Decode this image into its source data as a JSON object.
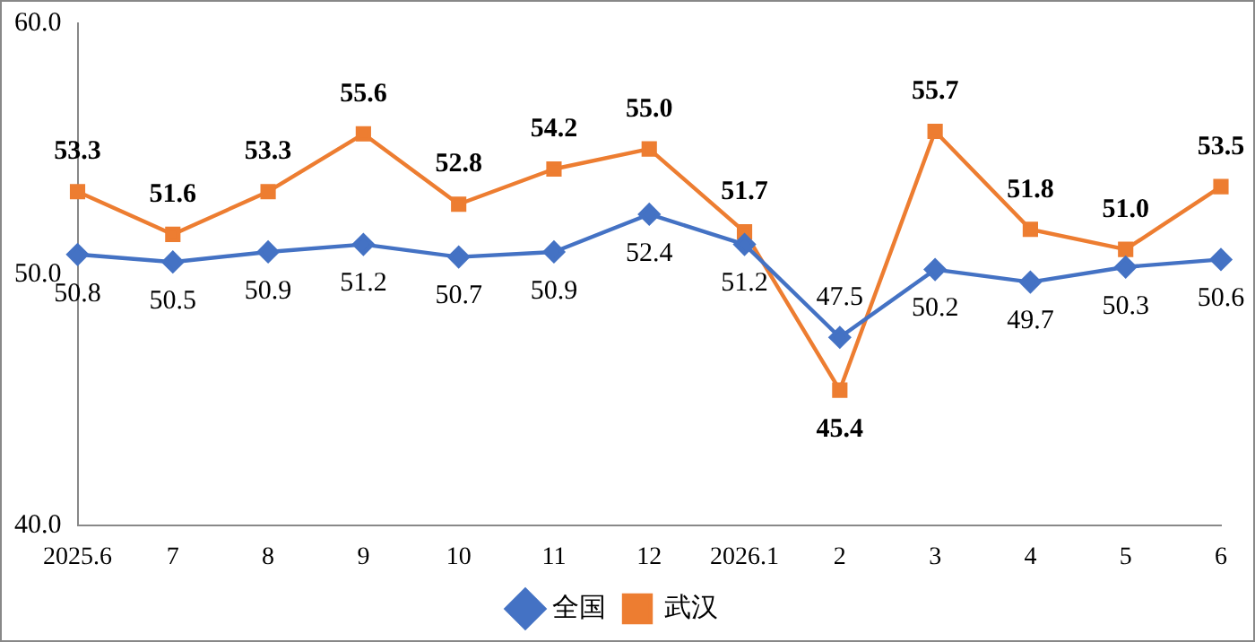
{
  "chart_data": {
    "type": "line",
    "categories": [
      "2025.6",
      "7",
      "8",
      "9",
      "10",
      "11",
      "12",
      "2026.1",
      "2",
      "3",
      "4",
      "5",
      "6"
    ],
    "series": [
      {
        "name": "全国",
        "color": "#4472c4",
        "marker": "diamond",
        "values": [
          50.8,
          50.5,
          50.9,
          51.2,
          50.7,
          50.9,
          52.4,
          51.2,
          47.5,
          50.2,
          49.7,
          50.3,
          50.6
        ],
        "value_labels": [
          "50.8",
          "50.5",
          "50.9",
          "51.2",
          "50.7",
          "50.9",
          "52.4",
          "51.2",
          "47.5",
          "50.2",
          "49.7",
          "50.3",
          "50.6"
        ]
      },
      {
        "name": "武汉",
        "color": "#ed7d31",
        "marker": "square",
        "values": [
          53.3,
          51.6,
          53.3,
          55.6,
          52.8,
          54.2,
          55.0,
          51.7,
          45.4,
          55.7,
          51.8,
          51.0,
          53.5
        ],
        "value_labels": [
          "53.3",
          "51.6",
          "53.3",
          "55.6",
          "52.8",
          "54.2",
          "55.0",
          "51.7",
          "45.4",
          "55.7",
          "51.8",
          "51.0",
          "53.5"
        ]
      }
    ],
    "ylim": [
      40,
      60
    ],
    "yticks": [
      {
        "value": 40,
        "label": "40.0"
      },
      {
        "value": 50,
        "label": "50.0"
      },
      {
        "value": 60,
        "label": "60.0"
      }
    ],
    "grid": false,
    "legend": "bottom"
  }
}
